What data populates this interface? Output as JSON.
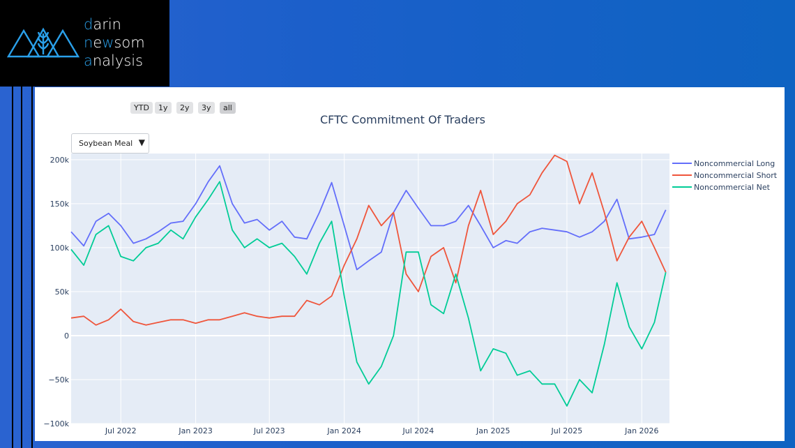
{
  "logo": {
    "line1_accent": "d",
    "line1_rest": "arin",
    "line2_pre": "n",
    "line2_accent": "e",
    "line2_mid": "w",
    "line2_rest": "som",
    "line3_accent": "a",
    "line3_rest": "nalysis"
  },
  "range_buttons": [
    "YTD",
    "1y",
    "2y",
    "3y",
    "all"
  ],
  "dropdown": {
    "selected": "Soybean Meal",
    "arrow": "▼"
  },
  "colors": {
    "long": "#636efa",
    "short": "#ef553b",
    "net": "#00cc96",
    "plot_bg": "#e5ecf6"
  },
  "chart_data": {
    "type": "line",
    "title": "CFTC Commitment Of Traders",
    "x_start": "2022-03-01",
    "x_end": "2026-03-10",
    "x_ticks": [
      "Jul 2022",
      "Jan 2023",
      "Jul 2023",
      "Jan 2024",
      "Jul 2024",
      "Jan 2025",
      "Jul 2025",
      "Jan 2026"
    ],
    "y_ticks": [
      "200k",
      "150k",
      "100k",
      "50k",
      "0",
      "−50k",
      "−100k"
    ],
    "ylim": [
      -100000,
      207000
    ],
    "grid": true,
    "legend_position": "right",
    "series": [
      {
        "name": "Noncommercial Long",
        "color": "#636efa",
        "points": [
          [
            "2022-03-01",
            118000
          ],
          [
            "2022-04-01",
            102000
          ],
          [
            "2022-05-01",
            130000
          ],
          [
            "2022-06-01",
            139000
          ],
          [
            "2022-07-01",
            125000
          ],
          [
            "2022-08-01",
            105000
          ],
          [
            "2022-09-01",
            110000
          ],
          [
            "2022-10-01",
            118000
          ],
          [
            "2022-11-01",
            128000
          ],
          [
            "2022-12-01",
            130000
          ],
          [
            "2023-01-01",
            150000
          ],
          [
            "2023-02-01",
            175000
          ],
          [
            "2023-03-01",
            193000
          ],
          [
            "2023-04-01",
            150000
          ],
          [
            "2023-05-01",
            128000
          ],
          [
            "2023-06-01",
            132000
          ],
          [
            "2023-07-01",
            120000
          ],
          [
            "2023-08-01",
            130000
          ],
          [
            "2023-09-01",
            112000
          ],
          [
            "2023-10-01",
            110000
          ],
          [
            "2023-11-01",
            140000
          ],
          [
            "2023-12-01",
            174000
          ],
          [
            "2024-01-01",
            125000
          ],
          [
            "2024-02-01",
            75000
          ],
          [
            "2024-03-01",
            85000
          ],
          [
            "2024-04-01",
            95000
          ],
          [
            "2024-05-01",
            140000
          ],
          [
            "2024-06-01",
            165000
          ],
          [
            "2024-07-01",
            145000
          ],
          [
            "2024-08-01",
            125000
          ],
          [
            "2024-09-01",
            125000
          ],
          [
            "2024-10-01",
            130000
          ],
          [
            "2024-11-01",
            148000
          ],
          [
            "2024-12-01",
            125000
          ],
          [
            "2025-01-01",
            100000
          ],
          [
            "2025-02-01",
            108000
          ],
          [
            "2025-03-01",
            105000
          ],
          [
            "2025-04-01",
            118000
          ],
          [
            "2025-05-01",
            122000
          ],
          [
            "2025-06-01",
            120000
          ],
          [
            "2025-07-01",
            118000
          ],
          [
            "2025-08-01",
            112000
          ],
          [
            "2025-09-01",
            118000
          ],
          [
            "2025-10-01",
            130000
          ],
          [
            "2025-11-01",
            155000
          ],
          [
            "2025-12-01",
            110000
          ],
          [
            "2026-01-01",
            112000
          ],
          [
            "2026-02-01",
            115000
          ],
          [
            "2026-03-01",
            143000
          ]
        ]
      },
      {
        "name": "Noncommercial Short",
        "color": "#ef553b",
        "points": [
          [
            "2022-03-01",
            20000
          ],
          [
            "2022-04-01",
            22000
          ],
          [
            "2022-05-01",
            12000
          ],
          [
            "2022-06-01",
            18000
          ],
          [
            "2022-07-01",
            30000
          ],
          [
            "2022-08-01",
            16000
          ],
          [
            "2022-09-01",
            12000
          ],
          [
            "2022-10-01",
            15000
          ],
          [
            "2022-11-01",
            18000
          ],
          [
            "2022-12-01",
            18000
          ],
          [
            "2023-01-01",
            14000
          ],
          [
            "2023-02-01",
            18000
          ],
          [
            "2023-03-01",
            18000
          ],
          [
            "2023-04-01",
            22000
          ],
          [
            "2023-05-01",
            26000
          ],
          [
            "2023-06-01",
            22000
          ],
          [
            "2023-07-01",
            20000
          ],
          [
            "2023-08-01",
            22000
          ],
          [
            "2023-09-01",
            22000
          ],
          [
            "2023-10-01",
            40000
          ],
          [
            "2023-11-01",
            35000
          ],
          [
            "2023-12-01",
            45000
          ],
          [
            "2024-01-01",
            80000
          ],
          [
            "2024-02-01",
            110000
          ],
          [
            "2024-03-01",
            148000
          ],
          [
            "2024-04-01",
            125000
          ],
          [
            "2024-05-01",
            140000
          ],
          [
            "2024-06-01",
            70000
          ],
          [
            "2024-07-01",
            50000
          ],
          [
            "2024-08-01",
            90000
          ],
          [
            "2024-09-01",
            100000
          ],
          [
            "2024-10-01",
            60000
          ],
          [
            "2024-11-01",
            125000
          ],
          [
            "2024-12-01",
            165000
          ],
          [
            "2025-01-01",
            115000
          ],
          [
            "2025-02-01",
            130000
          ],
          [
            "2025-03-01",
            150000
          ],
          [
            "2025-04-01",
            160000
          ],
          [
            "2025-05-01",
            185000
          ],
          [
            "2025-06-01",
            205000
          ],
          [
            "2025-07-01",
            198000
          ],
          [
            "2025-08-01",
            150000
          ],
          [
            "2025-09-01",
            185000
          ],
          [
            "2025-10-01",
            140000
          ],
          [
            "2025-11-01",
            85000
          ],
          [
            "2025-12-01",
            112000
          ],
          [
            "2026-01-01",
            130000
          ],
          [
            "2026-02-01",
            100000
          ],
          [
            "2026-03-01",
            72000
          ]
        ]
      },
      {
        "name": "Noncommercial Net",
        "color": "#00cc96",
        "points": [
          [
            "2022-03-01",
            98000
          ],
          [
            "2022-04-01",
            80000
          ],
          [
            "2022-05-01",
            115000
          ],
          [
            "2022-06-01",
            125000
          ],
          [
            "2022-07-01",
            90000
          ],
          [
            "2022-08-01",
            85000
          ],
          [
            "2022-09-01",
            100000
          ],
          [
            "2022-10-01",
            105000
          ],
          [
            "2022-11-01",
            120000
          ],
          [
            "2022-12-01",
            110000
          ],
          [
            "2023-01-01",
            135000
          ],
          [
            "2023-02-01",
            155000
          ],
          [
            "2023-03-01",
            175000
          ],
          [
            "2023-04-01",
            120000
          ],
          [
            "2023-05-01",
            100000
          ],
          [
            "2023-06-01",
            110000
          ],
          [
            "2023-07-01",
            100000
          ],
          [
            "2023-08-01",
            105000
          ],
          [
            "2023-09-01",
            90000
          ],
          [
            "2023-10-01",
            70000
          ],
          [
            "2023-11-01",
            105000
          ],
          [
            "2023-12-01",
            130000
          ],
          [
            "2024-01-01",
            45000
          ],
          [
            "2024-02-01",
            -30000
          ],
          [
            "2024-03-01",
            -55000
          ],
          [
            "2024-04-01",
            -35000
          ],
          [
            "2024-05-01",
            0
          ],
          [
            "2024-06-01",
            95000
          ],
          [
            "2024-07-01",
            95000
          ],
          [
            "2024-08-01",
            35000
          ],
          [
            "2024-09-01",
            25000
          ],
          [
            "2024-10-01",
            70000
          ],
          [
            "2024-11-01",
            20000
          ],
          [
            "2024-12-01",
            -40000
          ],
          [
            "2025-01-01",
            -15000
          ],
          [
            "2025-02-01",
            -20000
          ],
          [
            "2025-03-01",
            -45000
          ],
          [
            "2025-04-01",
            -40000
          ],
          [
            "2025-05-01",
            -55000
          ],
          [
            "2025-06-01",
            -55000
          ],
          [
            "2025-07-01",
            -80000
          ],
          [
            "2025-08-01",
            -50000
          ],
          [
            "2025-09-01",
            -65000
          ],
          [
            "2025-10-01",
            -10000
          ],
          [
            "2025-11-01",
            60000
          ],
          [
            "2025-12-01",
            10000
          ],
          [
            "2026-01-01",
            -15000
          ],
          [
            "2026-02-01",
            15000
          ],
          [
            "2026-03-01",
            72000
          ]
        ]
      }
    ]
  }
}
